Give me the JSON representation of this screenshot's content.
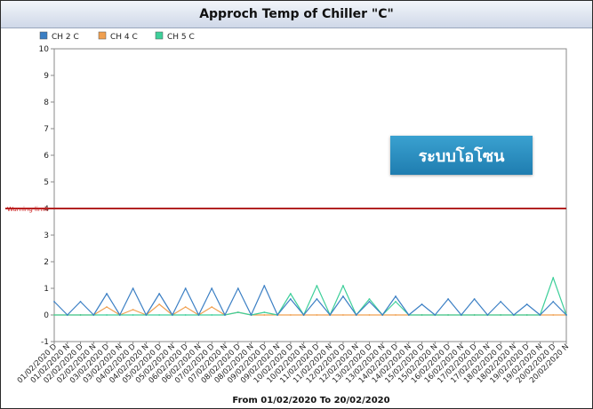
{
  "chart_data": {
    "type": "line",
    "title": "Approch Temp of Chiller \"C\"",
    "xlabel": "From 01/02/2020 To 20/02/2020",
    "ylabel": "",
    "ylim": [
      -1,
      10
    ],
    "y_ticks": [
      "-1",
      "0",
      "1",
      "2",
      "3",
      "4",
      "5",
      "6",
      "7",
      "8",
      "9",
      "10"
    ],
    "grid": "off",
    "legend_position": "top-left",
    "categories": [
      "01/02/2020 D",
      "01/02/2020 N",
      "02/02/2020 D",
      "02/02/2020 N",
      "03/02/2020 D",
      "03/02/2020 N",
      "04/02/2020 D",
      "04/02/2020 N",
      "05/02/2020 D",
      "05/02/2020 N",
      "06/02/2020 D",
      "06/02/2020 N",
      "07/02/2020 D",
      "07/02/2020 N",
      "08/02/2020 D",
      "08/02/2020 N",
      "09/02/2020 D",
      "09/02/2020 N",
      "10/02/2020 D",
      "10/02/2020 N",
      "11/02/2020 D",
      "11/02/2020 N",
      "12/02/2020 D",
      "12/02/2020 N",
      "13/02/2020 D",
      "13/02/2020 N",
      "14/02/2020 D",
      "14/02/2020 N",
      "15/02/2020 D",
      "15/02/2020 N",
      "16/02/2020 D",
      "16/02/2020 N",
      "17/02/2020 D",
      "17/02/2020 N",
      "18/02/2020 D",
      "18/02/2020 N",
      "19/02/2020 D",
      "19/02/2020 N",
      "20/02/2020 D",
      "20/02/2020 N"
    ],
    "series": [
      {
        "name": "CH 2 C",
        "color": "#3b7fc4",
        "values": [
          0.5,
          0,
          0.5,
          0,
          0.8,
          0,
          1.0,
          0,
          0.8,
          0,
          1.0,
          0,
          1.0,
          0,
          1.0,
          0,
          1.1,
          0,
          0.6,
          0,
          0.6,
          0,
          0.7,
          0,
          0.5,
          0,
          0.7,
          0,
          0.4,
          0,
          0.6,
          0,
          0.6,
          0,
          0.5,
          0,
          0.4,
          0,
          0.5,
          0
        ]
      },
      {
        "name": "CH 4 C",
        "color": "#f0a050",
        "values": [
          0,
          0,
          0,
          0,
          0.3,
          0,
          0.2,
          0,
          0.4,
          0,
          0.3,
          0,
          0.3,
          0,
          0.1,
          0,
          0,
          0,
          0,
          0,
          0,
          0,
          0,
          0,
          0,
          0,
          0,
          0,
          0,
          0,
          0,
          0,
          0,
          0,
          0,
          0,
          0,
          0,
          0,
          0
        ]
      },
      {
        "name": "CH 5 C",
        "color": "#3ecf9a",
        "values": [
          0,
          0,
          0,
          0,
          0,
          0,
          0,
          0,
          0,
          0,
          0,
          0,
          0,
          0,
          0.1,
          0,
          0.1,
          0,
          0.8,
          0,
          1.1,
          0,
          1.1,
          0,
          0.6,
          0,
          0.5,
          0,
          0,
          0,
          0,
          0,
          0,
          0,
          0,
          0,
          0,
          0,
          1.4,
          0
        ]
      }
    ],
    "warning": {
      "label": "Warning limit",
      "value": 4.0,
      "color": "#b22222"
    }
  },
  "overlay_label": "ระบบโอโซน"
}
